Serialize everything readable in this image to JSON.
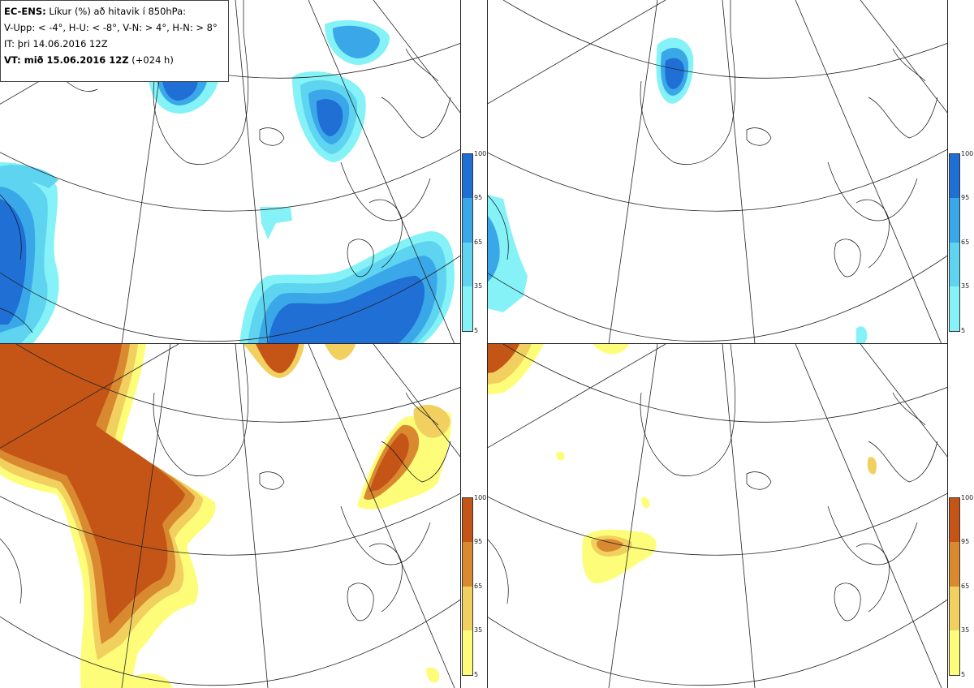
{
  "legend": {
    "line1_bold": "EC-ENS:",
    "line1_rest": " Líkur (%) að hitavik í 850hPa:",
    "line2": "V-Upp: < -4°, H-U: < -8°, V-N: > 4°, H-N: > 8°",
    "line3": "IT: þri 14.06.2016 12Z",
    "line4_bold": "VT: mið 15.06.2016 12Z",
    "line4_rest": " (+024 h)"
  },
  "colorbar": {
    "ticks": [
      "100",
      "95",
      "65",
      "35",
      "5"
    ]
  },
  "colors": {
    "blue": [
      "#84f2f6",
      "#5ed4f0",
      "#3aa8e8",
      "#1f6fd4"
    ],
    "warm": [
      "#fdfd7a",
      "#f2d060",
      "#d98a30",
      "#c45516"
    ]
  },
  "panels": [
    {
      "name": "cold-4"
    },
    {
      "name": "cold-8"
    },
    {
      "name": "warm+4"
    },
    {
      "name": "warm+8"
    }
  ]
}
